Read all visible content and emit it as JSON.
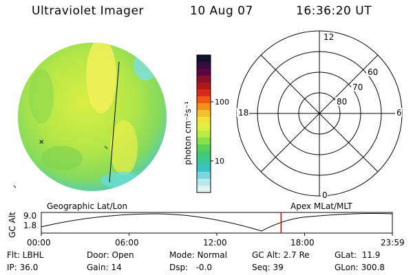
{
  "header": {
    "instrument": "Ultraviolet Imager",
    "date": "10 Aug 07",
    "time": "16:36:20 UT"
  },
  "colorbar": {
    "unit_label": "photon cm⁻²s⁻¹",
    "ticks": [
      "100",
      "10"
    ],
    "colors": [
      "#101030",
      "#3a0a40",
      "#5c0840",
      "#8a0f2a",
      "#b01818",
      "#d82a1a",
      "#f05a14",
      "#f6901a",
      "#f3bf2a",
      "#efe23a",
      "#ddf042",
      "#b8ec44",
      "#8ae048",
      "#5ad258",
      "#3fcb7a",
      "#38c89c",
      "#3ac2c4",
      "#7cd6e0",
      "#b6e8ee",
      "#e2f2f4"
    ]
  },
  "polar_grid": {
    "mlt_labels": [
      "12",
      "18",
      "6",
      "0"
    ],
    "lat_labels": [
      "60",
      "70",
      "80"
    ]
  },
  "timeline": {
    "axis_label": "GC Alt",
    "y_max": "9.0",
    "y_min": "1.8",
    "left_title": "Geographic Lat/Lon",
    "right_title": "Apex MLat/MLT",
    "x_ticks": [
      "00:00",
      "06:00",
      "12:00",
      "18:00",
      "23:59"
    ],
    "current_time_fraction": 0.683
  },
  "info": {
    "row1": {
      "filter": "Flt: LBHL",
      "door": "Door: Open",
      "mode": "Mode: Normal",
      "gc_alt": "GC Alt: 2.7 Re",
      "glat": "GLat:  11.9"
    },
    "row2": {
      "ip": "IP: 36.0",
      "gain": "Gain: 14",
      "dsp": "Dsp:   -0.0",
      "seq": "Seq: 39",
      "glon": "GLon: 300.8"
    }
  }
}
